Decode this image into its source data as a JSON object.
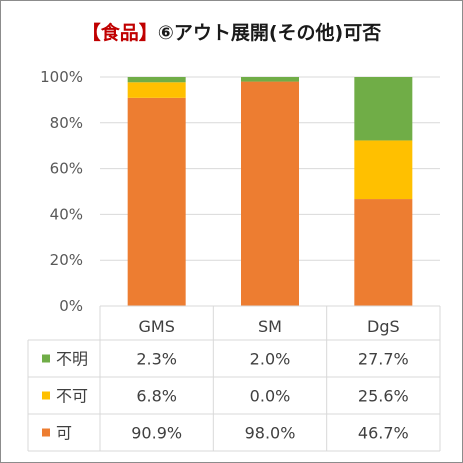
{
  "title": {
    "bracket": "【食品】",
    "rest": "⑥アウト展開(その他)可否"
  },
  "chart_data": {
    "type": "bar",
    "stacked": true,
    "categories": [
      "GMS",
      "SM",
      "DgS"
    ],
    "series": [
      {
        "name": "可",
        "color": "#ed7d31",
        "values": [
          90.9,
          98.0,
          46.7
        ]
      },
      {
        "name": "不可",
        "color": "#ffc000",
        "values": [
          6.8,
          0.0,
          25.6
        ]
      },
      {
        "name": "不明",
        "color": "#70ad47",
        "values": [
          2.3,
          2.0,
          27.7
        ]
      }
    ],
    "ylim": [
      0,
      100
    ],
    "yticks": [
      "0%",
      "20%",
      "40%",
      "60%",
      "80%",
      "100%"
    ],
    "grid": true,
    "data_table": {
      "rows": [
        {
          "name": "不明",
          "cells": [
            "2.3%",
            "2.0%",
            "27.7%"
          ]
        },
        {
          "name": "不可",
          "cells": [
            "6.8%",
            "0.0%",
            "25.6%"
          ]
        },
        {
          "name": "可",
          "cells": [
            "90.9%",
            "98.0%",
            "46.7%"
          ]
        }
      ]
    }
  }
}
